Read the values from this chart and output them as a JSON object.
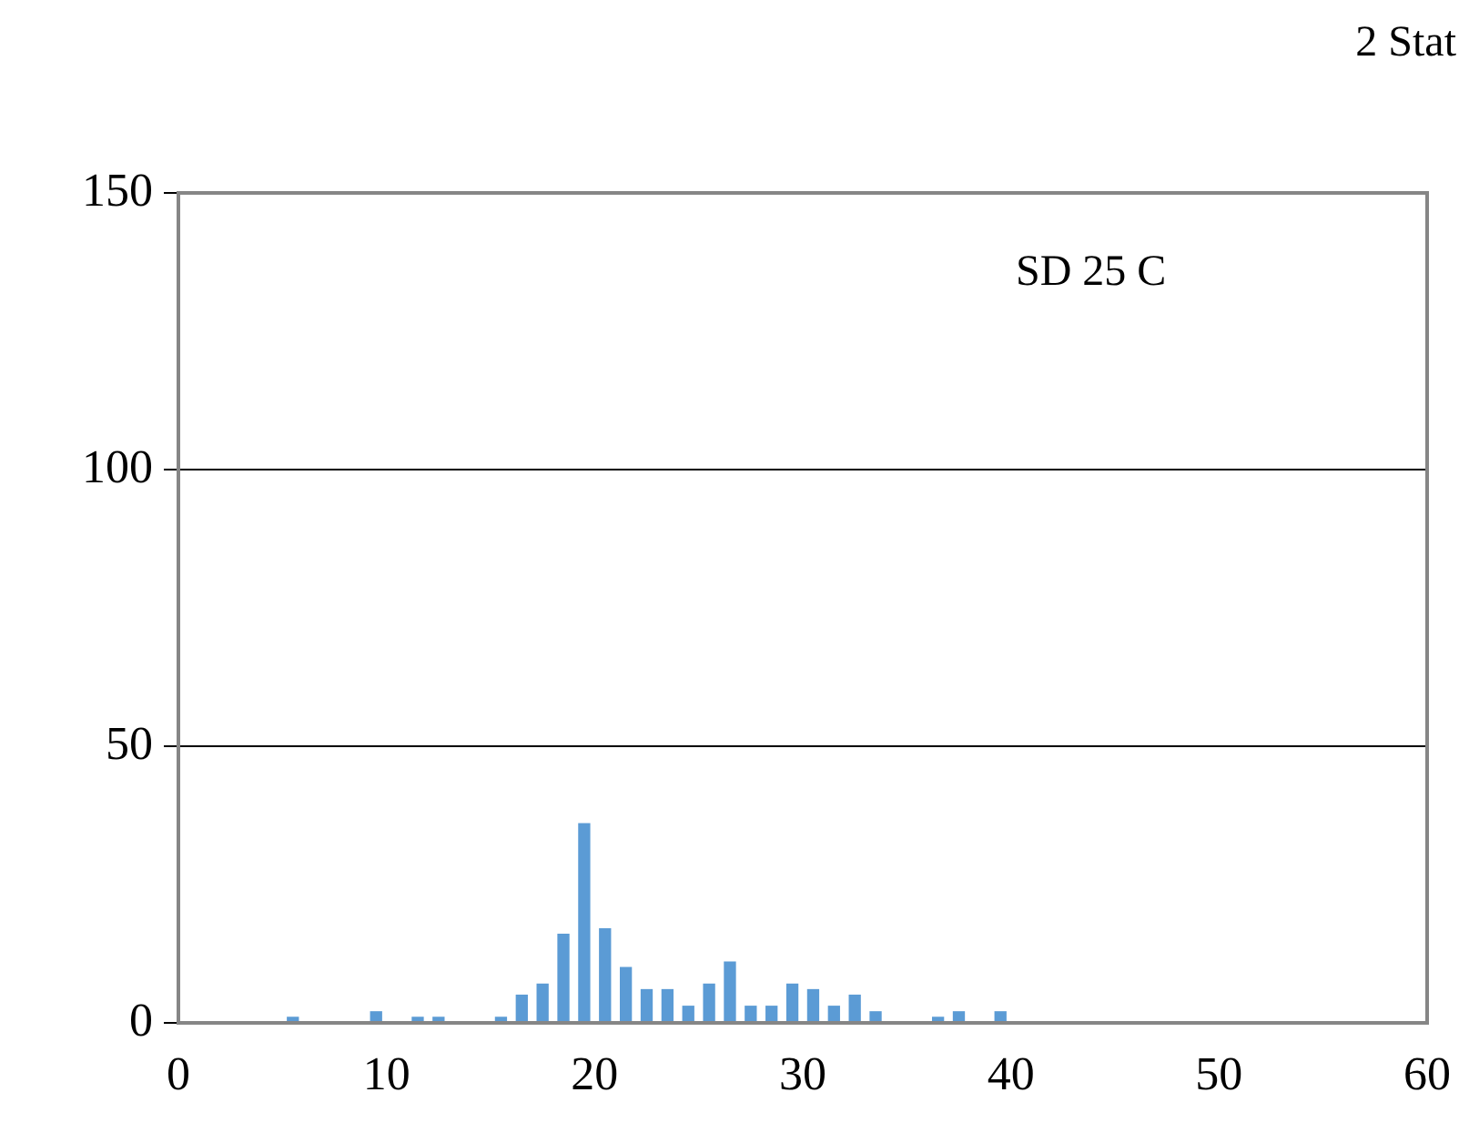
{
  "chart_data": {
    "type": "histogram",
    "annotations": [
      "2 Stat",
      "SD 25 C"
    ],
    "bins": [
      5,
      6,
      7,
      8,
      9,
      10,
      11,
      12,
      13,
      14,
      15,
      16,
      17,
      18,
      19,
      20,
      21,
      22,
      23,
      24,
      25,
      26,
      27,
      28,
      29,
      30,
      31,
      32,
      33,
      34,
      35,
      36,
      37,
      38,
      39,
      40
    ],
    "values": [
      1,
      0,
      0,
      0,
      2,
      0,
      1,
      1,
      0,
      0,
      1,
      5,
      7,
      16,
      36,
      17,
      10,
      6,
      6,
      3,
      7,
      11,
      3,
      3,
      7,
      6,
      3,
      5,
      2,
      0,
      0,
      1,
      2,
      0,
      2
    ],
    "color": "#5b9bd5",
    "xlim": [
      0,
      60
    ],
    "xticks": [
      0,
      10,
      20,
      30,
      40,
      50,
      60
    ],
    "ylim": [
      0,
      150
    ],
    "yticks": [
      0,
      50,
      100,
      150
    ],
    "grid": "y",
    "legend": false
  }
}
